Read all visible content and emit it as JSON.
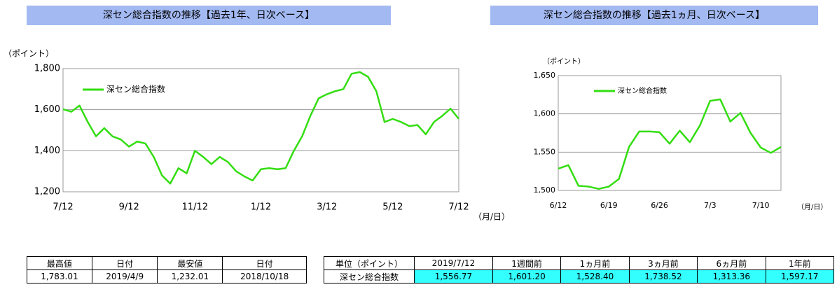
{
  "chart_data": [
    {
      "type": "line",
      "title": "深セン総合指数の推移【過去1年、日次ベース】",
      "y_label": "（ポイント）",
      "x_label": "（月/日）",
      "categories": [
        "7/12",
        null,
        null,
        null,
        null,
        null,
        null,
        null,
        "9/12",
        null,
        null,
        null,
        null,
        null,
        null,
        null,
        "11/12",
        null,
        null,
        null,
        null,
        null,
        null,
        null,
        "1/12",
        null,
        null,
        null,
        null,
        null,
        null,
        null,
        "3/12",
        null,
        null,
        null,
        null,
        null,
        null,
        null,
        "5/12",
        null,
        null,
        null,
        null,
        null,
        null,
        null,
        "7/12"
      ],
      "series": [
        {
          "name": "深セン総合指数",
          "color": "#33dd11",
          "values": [
            1602,
            1590,
            1620,
            1540,
            1470,
            1510,
            1470,
            1455,
            1420,
            1445,
            1435,
            1370,
            1280,
            1240,
            1315,
            1290,
            1400,
            1370,
            1335,
            1370,
            1345,
            1300,
            1275,
            1255,
            1310,
            1315,
            1310,
            1315,
            1400,
            1470,
            1570,
            1655,
            1675,
            1690,
            1700,
            1775,
            1783,
            1760,
            1690,
            1540,
            1555,
            1540,
            1520,
            1525,
            1480,
            1540,
            1570,
            1605,
            1555
          ]
        }
      ],
      "ylim": [
        1200,
        1800
      ],
      "yticks": [
        {
          "value": 1200,
          "label": "1,200"
        },
        {
          "value": 1400,
          "label": "1,400"
        },
        {
          "value": 1600,
          "label": "1,600"
        },
        {
          "value": 1800,
          "label": "1,800"
        }
      ],
      "grid": true
    },
    {
      "type": "line",
      "title": "深セン総合指数の推移【過去1ヵ月、日次ベース】",
      "y_label": "（ポイント）",
      "x_label": "（月/日）",
      "categories": [
        "6/12",
        null,
        null,
        null,
        null,
        "6/19",
        null,
        null,
        null,
        null,
        "6/26",
        null,
        null,
        null,
        null,
        "7/3",
        null,
        null,
        null,
        null,
        "7/10",
        null,
        null
      ],
      "series": [
        {
          "name": "深セン総合指数",
          "color": "#33dd11",
          "values": [
            1528.4,
            1533,
            1506,
            1505,
            1502,
            1505,
            1515,
            1557,
            1577,
            1577,
            1576,
            1561,
            1578,
            1563,
            1585,
            1617,
            1619,
            1590,
            1601.2,
            1575,
            1556,
            1549,
            1556.77
          ]
        }
      ],
      "ylim": [
        1500,
        1650
      ],
      "yticks": [
        {
          "value": 1500,
          "label": "1,500"
        },
        {
          "value": 1550,
          "label": "1,550"
        },
        {
          "value": 1600,
          "label": "1,600"
        },
        {
          "value": 1650,
          "label": "1,650"
        }
      ],
      "grid": true
    }
  ],
  "tables": [
    {
      "header": [
        "最高値",
        "日付",
        "最安値",
        "日付"
      ],
      "rows": [
        [
          "1,783.01",
          "2019/4/9",
          "1,232.01",
          "2018/10/18"
        ]
      ]
    },
    {
      "header": [
        "単位（ポイント）",
        "2019/7/12",
        "1週間前",
        "1ヵ月前",
        "3ヵ月前",
        "6ヵ月前",
        "1年前"
      ],
      "rows": [
        [
          "深セン総合指数",
          "1,556.77",
          "1,601.20",
          "1,528.40",
          "1,738.52",
          "1,313.36",
          "1,597.17"
        ]
      ]
    }
  ]
}
